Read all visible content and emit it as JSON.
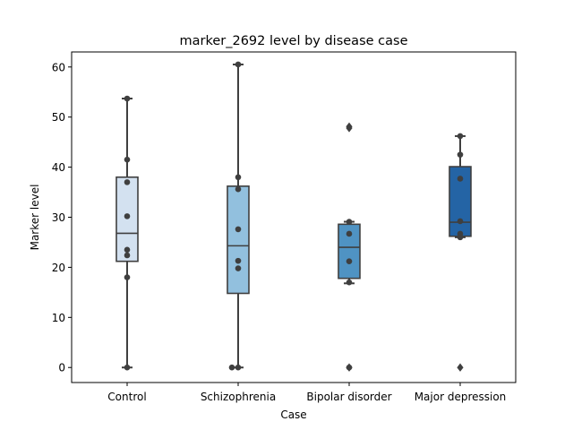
{
  "chart_data": {
    "type": "box",
    "title": "marker_2692 level by disease case",
    "xlabel": "Case",
    "ylabel": "Marker level",
    "ylim": [
      -3,
      63
    ],
    "yticks": [
      0,
      10,
      20,
      30,
      40,
      50,
      60
    ],
    "grid": false,
    "legend": "none",
    "categories": [
      "Control",
      "Schizophrenia",
      "Bipolar disorder",
      "Major depression"
    ],
    "colors": [
      "#d3e1f0",
      "#92c0de",
      "#4f93c3",
      "#2464a5"
    ],
    "edge_color": "#3f3f3f",
    "point_color": "#3f3f3f",
    "boxes": [
      {
        "category": "Control",
        "q1": 21.2,
        "median": 26.8,
        "q3": 38.0,
        "whisker_low": 0.0,
        "whisker_high": 53.7,
        "outliers": []
      },
      {
        "category": "Schizophrenia",
        "q1": 14.8,
        "median": 24.3,
        "q3": 36.2,
        "whisker_low": 0.0,
        "whisker_high": 60.5,
        "outliers": []
      },
      {
        "category": "Bipolar disorder",
        "q1": 17.8,
        "median": 24.0,
        "q3": 28.6,
        "whisker_low": 16.8,
        "whisker_high": 29.1,
        "outliers": [
          0.0,
          48.1,
          47.8
        ]
      },
      {
        "category": "Major depression",
        "q1": 26.2,
        "median": 29.0,
        "q3": 40.1,
        "whisker_low": 26.0,
        "whisker_high": 46.2,
        "outliers": [
          0.0
        ]
      }
    ],
    "points": [
      {
        "category": "Control",
        "values": [
          53.7,
          41.5,
          37.0,
          30.2,
          23.5,
          22.4,
          18.0,
          0.0
        ]
      },
      {
        "category": "Schizophrenia",
        "values": [
          60.5,
          38.0,
          35.6,
          27.6,
          21.3,
          19.8,
          0.0,
          0.0
        ]
      },
      {
        "category": "Bipolar disorder",
        "values": [
          29.1,
          26.7,
          21.2,
          17.0,
          0.0
        ]
      },
      {
        "category": "Major depression",
        "values": [
          46.2,
          42.5,
          37.7,
          29.2,
          26.7,
          26.0
        ]
      }
    ]
  }
}
